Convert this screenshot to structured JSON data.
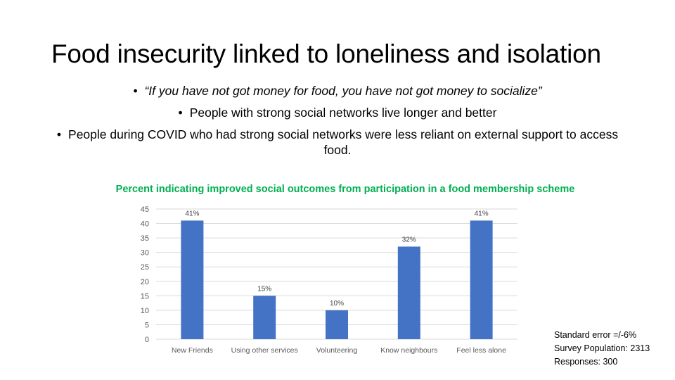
{
  "slide": {
    "title": "Food insecurity linked to loneliness and isolation",
    "bullets": [
      "“If you have not got money for food, you have not got money to socialize”",
      "People with strong social networks live longer and better",
      "People during COVID who had strong social networks were less reliant on external support to access food."
    ]
  },
  "notes": {
    "standard_error": "Standard error =/-6%",
    "survey_population": "Survey Population: 2313",
    "responses": "Responses: 300"
  },
  "colors": {
    "bar": "#4472c4",
    "title": "#00b050",
    "grid": "#d9d9d9"
  },
  "chart_data": {
    "type": "bar",
    "title": "Percent indicating improved social outcomes from participation in a food membership scheme",
    "categories": [
      "New Friends",
      "Using other services",
      "Volunteering",
      "Know neighbours",
      "Feel less alone"
    ],
    "values": [
      41,
      15,
      10,
      32,
      41
    ],
    "data_labels": [
      "41%",
      "15%",
      "10%",
      "32%",
      "41%"
    ],
    "yticks": [
      "0",
      "5",
      "10",
      "15",
      "20",
      "25",
      "30",
      "35",
      "40",
      "45"
    ],
    "ylim": [
      0,
      45
    ],
    "xlabel": "",
    "ylabel": "",
    "grid": true,
    "legend": "none"
  }
}
